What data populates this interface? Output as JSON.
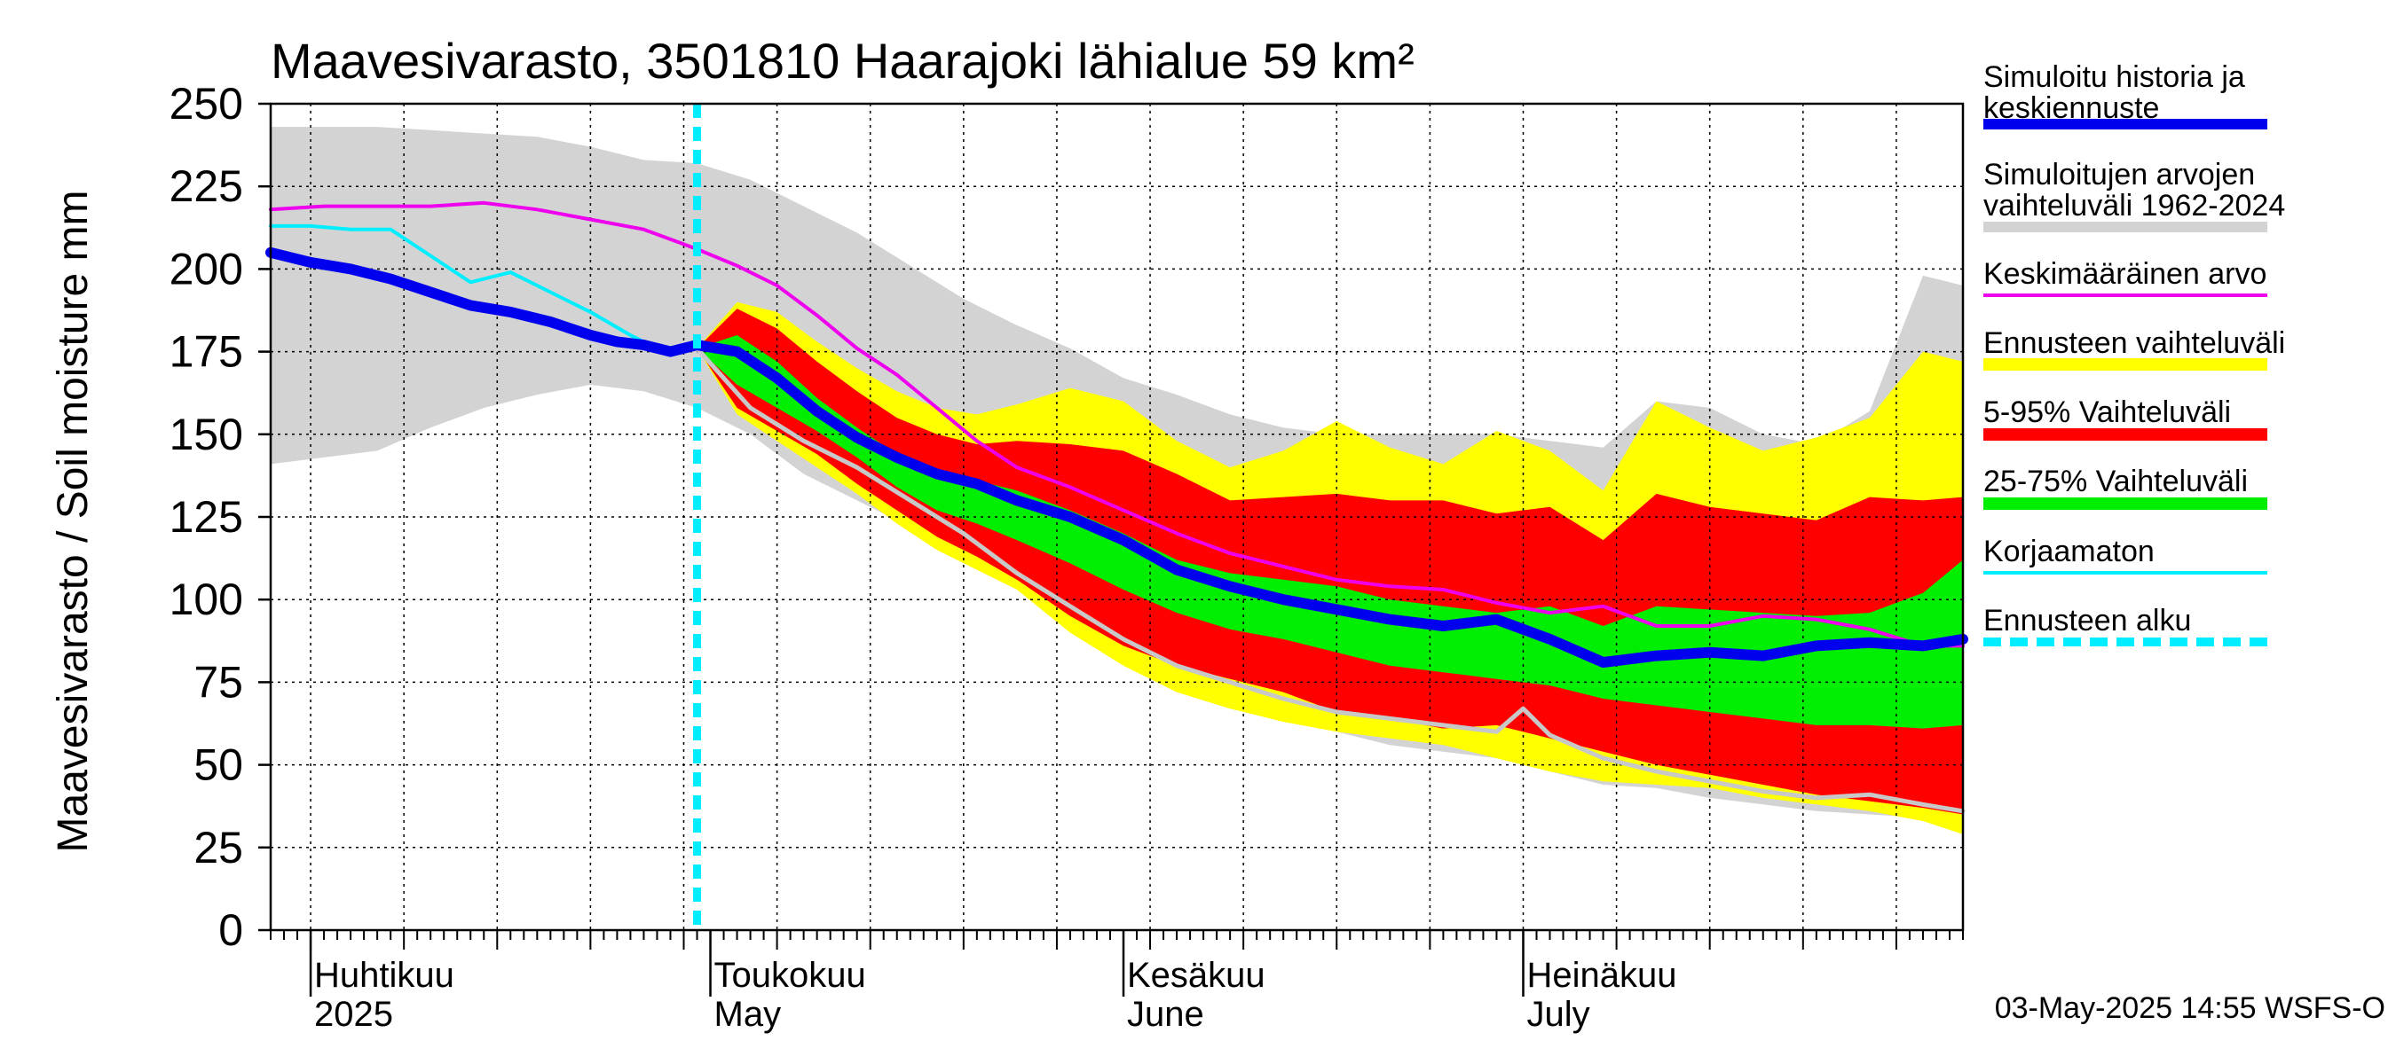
{
  "chart_data": {
    "type": "area",
    "title": "Maavesivarasto, 3501810 Haarajoki lähialue 59 km²",
    "ylabel": "Maavesivarasto / Soil moisture   mm",
    "ylim": [
      0,
      250
    ],
    "yticks": [
      0,
      25,
      50,
      75,
      100,
      125,
      150,
      175,
      200,
      225,
      250
    ],
    "xlim_days": [
      0,
      127
    ],
    "x_unit": "days since 2025-03-29",
    "month_labels": [
      {
        "fi": "Huhtikuu",
        "en": "2025",
        "day": 3
      },
      {
        "fi": "Toukokuu",
        "en": "May",
        "day": 33
      },
      {
        "fi": "Kesäkuu",
        "en": "June",
        "day": 64
      },
      {
        "fi": "Heinäkuu",
        "en": "July",
        "day": 94
      }
    ],
    "month_boundaries": [
      3,
      33,
      64,
      94
    ],
    "forecast_start_day": 32,
    "footer": "03-May-2025 14:55 WSFS-O",
    "legend": [
      {
        "label": "Simuloitu historia ja keskiennuste",
        "color": "#0000ee",
        "style": "thick"
      },
      {
        "label": "Simuloitujen arvojen vaihteluväli 1962-2024",
        "color": "#d3d3d3",
        "style": "band"
      },
      {
        "label": "Keskimääräinen arvo",
        "color": "#ee00ee",
        "style": "line"
      },
      {
        "label": "Ennusteen vaihteluväli",
        "color": "#ffff00",
        "style": "band"
      },
      {
        "label": "5-95% Vaihteluväli",
        "color": "#ff0000",
        "style": "band"
      },
      {
        "label": "25-75% Vaihteluväli",
        "color": "#00ee00",
        "style": "band"
      },
      {
        "label": "Korjaamaton",
        "color": "#00eeff",
        "style": "line"
      },
      {
        "label": "Ennusteen alku",
        "color": "#00eeff",
        "style": "dashed"
      }
    ],
    "series": {
      "hist_range_upper": {
        "x": [
          0,
          4,
          8,
          12,
          16,
          20,
          24,
          28,
          32,
          36,
          40,
          44,
          48,
          52,
          56,
          60,
          64,
          68,
          72,
          76,
          80,
          84,
          88,
          92,
          96,
          100,
          104,
          108,
          112,
          116,
          120,
          124,
          127
        ],
        "y": [
          243,
          243,
          243,
          242,
          241,
          240,
          237,
          233,
          232,
          227,
          219,
          211,
          201,
          191,
          183,
          176,
          167,
          162,
          156,
          152,
          150,
          150,
          150,
          150,
          148,
          146,
          160,
          158,
          150,
          147,
          157,
          198,
          195
        ]
      },
      "hist_range_lower": {
        "x": [
          0,
          4,
          8,
          12,
          16,
          20,
          24,
          28,
          32,
          36,
          40,
          44,
          48,
          52,
          56,
          60,
          64,
          68,
          72,
          76,
          80,
          84,
          88,
          92,
          96,
          100,
          104,
          108,
          112,
          116,
          120,
          124,
          127
        ],
        "y": [
          141,
          143,
          145,
          152,
          158,
          162,
          165,
          163,
          158,
          150,
          138,
          130,
          122,
          115,
          104,
          96,
          84,
          79,
          72,
          64,
          60,
          56,
          54,
          52,
          48,
          44,
          43,
          40,
          38,
          36,
          35,
          34,
          33
        ]
      },
      "forecast_range_upper": {
        "x": [
          32,
          35,
          38,
          41,
          44,
          47,
          50,
          53,
          56,
          60,
          64,
          68,
          72,
          76,
          80,
          84,
          88,
          92,
          96,
          100,
          104,
          108,
          112,
          116,
          120,
          124,
          127
        ],
        "y": [
          176,
          190,
          187,
          178,
          170,
          163,
          158,
          156,
          159,
          164,
          160,
          148,
          140,
          145,
          154,
          146,
          141,
          151,
          145,
          133,
          160,
          152,
          145,
          149,
          155,
          175,
          172
        ]
      },
      "forecast_range_lower": {
        "x": [
          32,
          35,
          38,
          41,
          44,
          47,
          50,
          53,
          56,
          60,
          64,
          68,
          72,
          76,
          80,
          84,
          88,
          92,
          96,
          100,
          104,
          108,
          112,
          116,
          120,
          124,
          127
        ],
        "y": [
          176,
          156,
          148,
          140,
          132,
          123,
          115,
          109,
          103,
          90,
          80,
          72,
          67,
          63,
          60,
          58,
          56,
          52,
          48,
          45,
          44,
          43,
          40,
          38,
          36,
          33,
          29
        ]
      },
      "p05_95_upper": {
        "x": [
          32,
          35,
          38,
          41,
          44,
          47,
          50,
          53,
          56,
          60,
          64,
          68,
          72,
          76,
          80,
          84,
          88,
          92,
          96,
          100,
          104,
          108,
          112,
          116,
          120,
          124,
          127
        ],
        "y": [
          176,
          188,
          182,
          172,
          163,
          155,
          150,
          147,
          148,
          147,
          145,
          138,
          130,
          131,
          132,
          130,
          130,
          126,
          128,
          118,
          132,
          128,
          126,
          124,
          131,
          130,
          131
        ]
      },
      "p05_95_lower": {
        "x": [
          32,
          35,
          38,
          41,
          44,
          47,
          50,
          53,
          56,
          60,
          64,
          68,
          72,
          76,
          80,
          84,
          88,
          92,
          96,
          100,
          104,
          108,
          112,
          116,
          120,
          124,
          127
        ],
        "y": [
          176,
          158,
          151,
          144,
          135,
          127,
          119,
          113,
          106,
          95,
          86,
          80,
          76,
          72,
          66,
          64,
          61,
          62,
          58,
          54,
          50,
          47,
          44,
          41,
          39,
          37,
          35
        ]
      },
      "p25_75_upper": {
        "x": [
          32,
          35,
          38,
          41,
          44,
          47,
          50,
          53,
          56,
          60,
          64,
          68,
          72,
          76,
          80,
          84,
          88,
          92,
          96,
          100,
          104,
          108,
          112,
          116,
          120,
          124,
          127
        ],
        "y": [
          176,
          180,
          172,
          161,
          152,
          144,
          139,
          136,
          133,
          127,
          120,
          112,
          108,
          106,
          104,
          100,
          98,
          96,
          98,
          92,
          98,
          97,
          96,
          95,
          96,
          102,
          112
        ]
      },
      "p25_75_lower": {
        "x": [
          32,
          35,
          38,
          41,
          44,
          47,
          50,
          53,
          56,
          60,
          64,
          68,
          72,
          76,
          80,
          84,
          88,
          92,
          96,
          100,
          104,
          108,
          112,
          116,
          120,
          124,
          127
        ],
        "y": [
          176,
          165,
          158,
          151,
          143,
          134,
          127,
          123,
          118,
          111,
          103,
          96,
          91,
          88,
          84,
          80,
          78,
          76,
          74,
          70,
          68,
          66,
          64,
          62,
          62,
          61,
          62
        ]
      },
      "simulated_median": {
        "x": [
          0,
          3,
          6,
          9,
          12,
          15,
          18,
          21,
          24,
          26,
          28,
          30,
          32,
          35,
          38,
          41,
          44,
          47,
          50,
          53,
          56,
          60,
          64,
          68,
          72,
          76,
          80,
          84,
          88,
          90,
          92,
          96,
          100,
          104,
          108,
          112,
          116,
          120,
          124,
          127
        ],
        "y": [
          205,
          202,
          200,
          197,
          193,
          189,
          187,
          184,
          180,
          178,
          177,
          175,
          177,
          175,
          167,
          157,
          149,
          143,
          138,
          135,
          130,
          125,
          118,
          109,
          104,
          100,
          97,
          94,
          92,
          93,
          94,
          88,
          81,
          83,
          84,
          83,
          86,
          87,
          86,
          88
        ]
      },
      "mean": {
        "x": [
          0,
          4,
          8,
          12,
          16,
          20,
          24,
          28,
          32,
          35,
          38,
          41,
          44,
          47,
          50,
          53,
          56,
          60,
          64,
          68,
          72,
          76,
          80,
          84,
          88,
          92,
          96,
          100,
          104,
          108,
          112,
          116,
          120,
          124,
          127
        ],
        "y": [
          218,
          219,
          219,
          219,
          220,
          218,
          215,
          212,
          206,
          201,
          195,
          186,
          176,
          168,
          158,
          148,
          140,
          134,
          127,
          120,
          114,
          110,
          106,
          104,
          103,
          99,
          96,
          98,
          92,
          92,
          95,
          94,
          91,
          86,
          86
        ]
      },
      "uncorrected": {
        "x": [
          0,
          3,
          6,
          9,
          12,
          15,
          18,
          21,
          24,
          27,
          29,
          30
        ],
        "y": [
          213,
          213,
          212,
          212,
          204,
          196,
          199,
          193,
          187,
          180,
          176,
          175
        ]
      },
      "hist_min_trace": {
        "x": [
          32,
          36,
          40,
          44,
          48,
          52,
          56,
          60,
          64,
          68,
          72,
          76,
          80,
          84,
          88,
          92,
          94,
          96,
          100,
          104,
          108,
          112,
          116,
          120,
          124,
          127
        ],
        "y": [
          176,
          158,
          148,
          140,
          130,
          120,
          108,
          98,
          88,
          80,
          75,
          70,
          66,
          64,
          62,
          60,
          67,
          59,
          52,
          48,
          45,
          42,
          40,
          41,
          38,
          36
        ]
      }
    }
  }
}
